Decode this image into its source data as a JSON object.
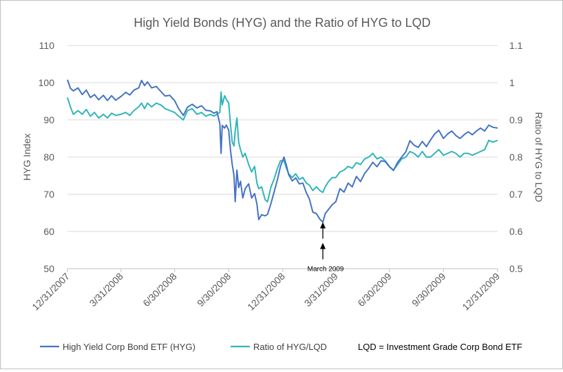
{
  "chart_data": {
    "type": "line",
    "title": "High Yield Bonds (HYG) and the Ratio of HYG to LQD",
    "ylabel": "HYG Index",
    "y2label": "Ratio of HYG to LQD",
    "ylim": [
      50,
      110
    ],
    "y2lim": [
      0.5,
      1.1
    ],
    "yticks": [
      "50",
      "60",
      "70",
      "80",
      "90",
      "100",
      "110"
    ],
    "y2ticks": [
      "0.5",
      "0.6",
      "0.7",
      "0.8",
      "0.9",
      "1",
      "1.1"
    ],
    "xlim": [
      "2007-12-31",
      "2009-12-31"
    ],
    "xticks": [
      {
        "date": "2007-12-31",
        "label": "12/31/2007"
      },
      {
        "date": "2008-03-31",
        "label": "3/31/2008"
      },
      {
        "date": "2008-06-30",
        "label": "6/30/2008"
      },
      {
        "date": "2008-09-30",
        "label": "9/30/2008"
      },
      {
        "date": "2008-12-31",
        "label": "12/31/2008"
      },
      {
        "date": "2009-03-31",
        "label": "3/31/2009"
      },
      {
        "date": "2009-06-30",
        "label": "6/30/2009"
      },
      {
        "date": "2009-09-30",
        "label": "9/30/2009"
      },
      {
        "date": "2009-12-31",
        "label": "12/31/2009"
      }
    ],
    "grid": "horizontal",
    "legend_position": "bottom",
    "annotation": {
      "text": "March 2009",
      "date": "2009-03-09",
      "value": 62.5
    },
    "legend_note": "LQD = Investment Grade Corp Bond ETF",
    "colors": {
      "hyg": "#4472c4",
      "ratio": "#2fb5b8",
      "grid": "#d9d9d9",
      "text": "#595959"
    },
    "series": [
      {
        "name": "High Yield Corp Bond ETF (HYG)",
        "axis": "left",
        "points": [
          [
            "2007-12-31",
            100.8
          ],
          [
            "2008-01-05",
            98.5
          ],
          [
            "2008-01-10",
            97.8
          ],
          [
            "2008-01-18",
            98.6
          ],
          [
            "2008-01-25",
            96.8
          ],
          [
            "2008-02-01",
            98.0
          ],
          [
            "2008-02-08",
            96.0
          ],
          [
            "2008-02-15",
            96.8
          ],
          [
            "2008-02-22",
            95.4
          ],
          [
            "2008-03-01",
            96.6
          ],
          [
            "2008-03-08",
            95.2
          ],
          [
            "2008-03-15",
            96.5
          ],
          [
            "2008-03-22",
            95.3
          ],
          [
            "2008-03-31",
            96.3
          ],
          [
            "2008-04-08",
            97.4
          ],
          [
            "2008-04-15",
            96.7
          ],
          [
            "2008-04-22",
            98.0
          ],
          [
            "2008-04-30",
            98.6
          ],
          [
            "2008-05-05",
            100.6
          ],
          [
            "2008-05-10",
            99.2
          ],
          [
            "2008-05-15",
            100.2
          ],
          [
            "2008-05-22",
            98.6
          ],
          [
            "2008-05-30",
            99.0
          ],
          [
            "2008-06-07",
            97.6
          ],
          [
            "2008-06-14",
            96.4
          ],
          [
            "2008-06-22",
            96.6
          ],
          [
            "2008-06-30",
            95.2
          ],
          [
            "2008-07-07",
            93.0
          ],
          [
            "2008-07-15",
            91.2
          ],
          [
            "2008-07-22",
            93.4
          ],
          [
            "2008-07-30",
            94.2
          ],
          [
            "2008-08-07",
            93.2
          ],
          [
            "2008-08-15",
            93.8
          ],
          [
            "2008-08-22",
            92.6
          ],
          [
            "2008-08-30",
            92.4
          ],
          [
            "2008-09-05",
            91.8
          ],
          [
            "2008-09-10",
            92.2
          ],
          [
            "2008-09-15",
            89.0
          ],
          [
            "2008-09-17",
            81.0
          ],
          [
            "2008-09-19",
            88.5
          ],
          [
            "2008-09-23",
            87.8
          ],
          [
            "2008-09-26",
            88.6
          ],
          [
            "2008-09-30",
            87.2
          ],
          [
            "2008-10-03",
            82.0
          ],
          [
            "2008-10-06",
            78.0
          ],
          [
            "2008-10-09",
            75.0
          ],
          [
            "2008-10-11",
            68.0
          ],
          [
            "2008-10-14",
            76.5
          ],
          [
            "2008-10-17",
            71.8
          ],
          [
            "2008-10-20",
            73.5
          ],
          [
            "2008-10-24",
            69.0
          ],
          [
            "2008-10-28",
            71.5
          ],
          [
            "2008-11-03",
            72.8
          ],
          [
            "2008-11-08",
            69.0
          ],
          [
            "2008-11-13",
            70.2
          ],
          [
            "2008-11-17",
            67.4
          ],
          [
            "2008-11-20",
            63.2
          ],
          [
            "2008-11-25",
            64.5
          ],
          [
            "2008-12-01",
            64.2
          ],
          [
            "2008-12-05",
            64.6
          ],
          [
            "2008-12-11",
            67.6
          ],
          [
            "2008-12-16",
            70.5
          ],
          [
            "2008-12-22",
            74.0
          ],
          [
            "2008-12-27",
            77.5
          ],
          [
            "2009-01-02",
            80.0
          ],
          [
            "2009-01-06",
            77.8
          ],
          [
            "2009-01-10",
            75.2
          ],
          [
            "2009-01-16",
            73.6
          ],
          [
            "2009-01-22",
            74.4
          ],
          [
            "2009-01-28",
            72.8
          ],
          [
            "2009-02-03",
            73.0
          ],
          [
            "2009-02-09",
            70.4
          ],
          [
            "2009-02-14",
            68.8
          ],
          [
            "2009-02-20",
            65.2
          ],
          [
            "2009-02-26",
            64.8
          ],
          [
            "2009-03-04",
            63.3
          ],
          [
            "2009-03-09",
            62.5
          ],
          [
            "2009-03-13",
            64.8
          ],
          [
            "2009-03-19",
            66.0
          ],
          [
            "2009-03-25",
            67.2
          ],
          [
            "2009-03-31",
            68.0
          ],
          [
            "2009-04-07",
            71.5
          ],
          [
            "2009-04-14",
            70.6
          ],
          [
            "2009-04-21",
            73.0
          ],
          [
            "2009-04-28",
            72.0
          ],
          [
            "2009-05-05",
            74.8
          ],
          [
            "2009-05-12",
            73.4
          ],
          [
            "2009-05-19",
            75.6
          ],
          [
            "2009-05-26",
            77.0
          ],
          [
            "2009-06-02",
            78.6
          ],
          [
            "2009-06-09",
            77.4
          ],
          [
            "2009-06-16",
            79.0
          ],
          [
            "2009-06-23",
            78.8
          ],
          [
            "2009-06-30",
            77.4
          ],
          [
            "2009-07-07",
            76.4
          ],
          [
            "2009-07-14",
            78.6
          ],
          [
            "2009-07-21",
            80.0
          ],
          [
            "2009-07-28",
            81.4
          ],
          [
            "2009-08-04",
            84.4
          ],
          [
            "2009-08-11",
            83.2
          ],
          [
            "2009-08-18",
            82.6
          ],
          [
            "2009-08-25",
            84.2
          ],
          [
            "2009-09-01",
            82.8
          ],
          [
            "2009-09-08",
            84.6
          ],
          [
            "2009-09-15",
            86.2
          ],
          [
            "2009-09-22",
            87.2
          ],
          [
            "2009-09-30",
            85.0
          ],
          [
            "2009-10-07",
            86.2
          ],
          [
            "2009-10-14",
            87.0
          ],
          [
            "2009-10-21",
            85.8
          ],
          [
            "2009-10-28",
            85.0
          ],
          [
            "2009-11-04",
            86.0
          ],
          [
            "2009-11-11",
            86.8
          ],
          [
            "2009-11-18",
            86.0
          ],
          [
            "2009-11-25",
            87.0
          ],
          [
            "2009-12-02",
            87.8
          ],
          [
            "2009-12-09",
            87.0
          ],
          [
            "2009-12-16",
            88.6
          ],
          [
            "2009-12-23",
            88.0
          ],
          [
            "2009-12-31",
            87.8
          ]
        ]
      },
      {
        "name": "Ratio of HYG/LQD",
        "axis": "right",
        "points": [
          [
            "2007-12-31",
            0.96
          ],
          [
            "2008-01-05",
            0.935
          ],
          [
            "2008-01-10",
            0.915
          ],
          [
            "2008-01-18",
            0.925
          ],
          [
            "2008-01-25",
            0.915
          ],
          [
            "2008-02-01",
            0.928
          ],
          [
            "2008-02-08",
            0.91
          ],
          [
            "2008-02-15",
            0.92
          ],
          [
            "2008-02-22",
            0.905
          ],
          [
            "2008-03-01",
            0.915
          ],
          [
            "2008-03-08",
            0.905
          ],
          [
            "2008-03-15",
            0.918
          ],
          [
            "2008-03-22",
            0.912
          ],
          [
            "2008-03-31",
            0.915
          ],
          [
            "2008-04-08",
            0.92
          ],
          [
            "2008-04-15",
            0.912
          ],
          [
            "2008-04-22",
            0.925
          ],
          [
            "2008-04-30",
            0.935
          ],
          [
            "2008-05-05",
            0.945
          ],
          [
            "2008-05-10",
            0.93
          ],
          [
            "2008-05-15",
            0.945
          ],
          [
            "2008-05-22",
            0.935
          ],
          [
            "2008-05-30",
            0.945
          ],
          [
            "2008-06-07",
            0.94
          ],
          [
            "2008-06-14",
            0.93
          ],
          [
            "2008-06-22",
            0.925
          ],
          [
            "2008-06-30",
            0.92
          ],
          [
            "2008-07-07",
            0.91
          ],
          [
            "2008-07-15",
            0.9
          ],
          [
            "2008-07-22",
            0.925
          ],
          [
            "2008-07-30",
            0.93
          ],
          [
            "2008-08-07",
            0.915
          ],
          [
            "2008-08-15",
            0.92
          ],
          [
            "2008-08-22",
            0.91
          ],
          [
            "2008-08-30",
            0.915
          ],
          [
            "2008-09-05",
            0.91
          ],
          [
            "2008-09-10",
            0.915
          ],
          [
            "2008-09-15",
            0.92
          ],
          [
            "2008-09-17",
            0.975
          ],
          [
            "2008-09-19",
            0.94
          ],
          [
            "2008-09-23",
            0.965
          ],
          [
            "2008-09-26",
            0.955
          ],
          [
            "2008-09-30",
            0.945
          ],
          [
            "2008-10-03",
            0.89
          ],
          [
            "2008-10-06",
            0.84
          ],
          [
            "2008-10-09",
            0.83
          ],
          [
            "2008-10-11",
            0.87
          ],
          [
            "2008-10-14",
            0.905
          ],
          [
            "2008-10-17",
            0.84
          ],
          [
            "2008-10-20",
            0.82
          ],
          [
            "2008-10-24",
            0.8
          ],
          [
            "2008-10-28",
            0.81
          ],
          [
            "2008-11-03",
            0.78
          ],
          [
            "2008-11-08",
            0.76
          ],
          [
            "2008-11-13",
            0.775
          ],
          [
            "2008-11-17",
            0.73
          ],
          [
            "2008-11-20",
            0.715
          ],
          [
            "2008-11-25",
            0.72
          ],
          [
            "2008-12-01",
            0.685
          ],
          [
            "2008-12-05",
            0.68
          ],
          [
            "2008-12-11",
            0.72
          ],
          [
            "2008-12-16",
            0.74
          ],
          [
            "2008-12-22",
            0.77
          ],
          [
            "2008-12-27",
            0.79
          ],
          [
            "2009-01-02",
            0.79
          ],
          [
            "2009-01-06",
            0.77
          ],
          [
            "2009-01-10",
            0.755
          ],
          [
            "2009-01-16",
            0.745
          ],
          [
            "2009-01-22",
            0.755
          ],
          [
            "2009-01-28",
            0.74
          ],
          [
            "2009-02-03",
            0.745
          ],
          [
            "2009-02-09",
            0.73
          ],
          [
            "2009-02-14",
            0.725
          ],
          [
            "2009-02-20",
            0.71
          ],
          [
            "2009-02-26",
            0.72
          ],
          [
            "2009-03-04",
            0.71
          ],
          [
            "2009-03-09",
            0.705
          ],
          [
            "2009-03-13",
            0.72
          ],
          [
            "2009-03-19",
            0.735
          ],
          [
            "2009-03-25",
            0.745
          ],
          [
            "2009-03-31",
            0.745
          ],
          [
            "2009-04-07",
            0.76
          ],
          [
            "2009-04-14",
            0.765
          ],
          [
            "2009-04-21",
            0.775
          ],
          [
            "2009-04-28",
            0.77
          ],
          [
            "2009-05-05",
            0.785
          ],
          [
            "2009-05-12",
            0.78
          ],
          [
            "2009-05-19",
            0.795
          ],
          [
            "2009-05-26",
            0.8
          ],
          [
            "2009-06-02",
            0.81
          ],
          [
            "2009-06-09",
            0.795
          ],
          [
            "2009-06-16",
            0.8
          ],
          [
            "2009-06-23",
            0.79
          ],
          [
            "2009-06-30",
            0.775
          ],
          [
            "2009-07-07",
            0.765
          ],
          [
            "2009-07-14",
            0.78
          ],
          [
            "2009-07-21",
            0.795
          ],
          [
            "2009-07-28",
            0.8
          ],
          [
            "2009-08-04",
            0.815
          ],
          [
            "2009-08-11",
            0.81
          ],
          [
            "2009-08-18",
            0.8
          ],
          [
            "2009-08-25",
            0.815
          ],
          [
            "2009-09-01",
            0.8
          ],
          [
            "2009-09-08",
            0.8
          ],
          [
            "2009-09-15",
            0.81
          ],
          [
            "2009-09-22",
            0.82
          ],
          [
            "2009-09-30",
            0.805
          ],
          [
            "2009-10-07",
            0.81
          ],
          [
            "2009-10-14",
            0.815
          ],
          [
            "2009-10-21",
            0.81
          ],
          [
            "2009-10-28",
            0.8
          ],
          [
            "2009-11-04",
            0.81
          ],
          [
            "2009-11-11",
            0.81
          ],
          [
            "2009-11-18",
            0.805
          ],
          [
            "2009-11-25",
            0.81
          ],
          [
            "2009-12-02",
            0.815
          ],
          [
            "2009-12-09",
            0.82
          ],
          [
            "2009-12-16",
            0.845
          ],
          [
            "2009-12-23",
            0.84
          ],
          [
            "2009-12-31",
            0.845
          ]
        ]
      }
    ]
  }
}
